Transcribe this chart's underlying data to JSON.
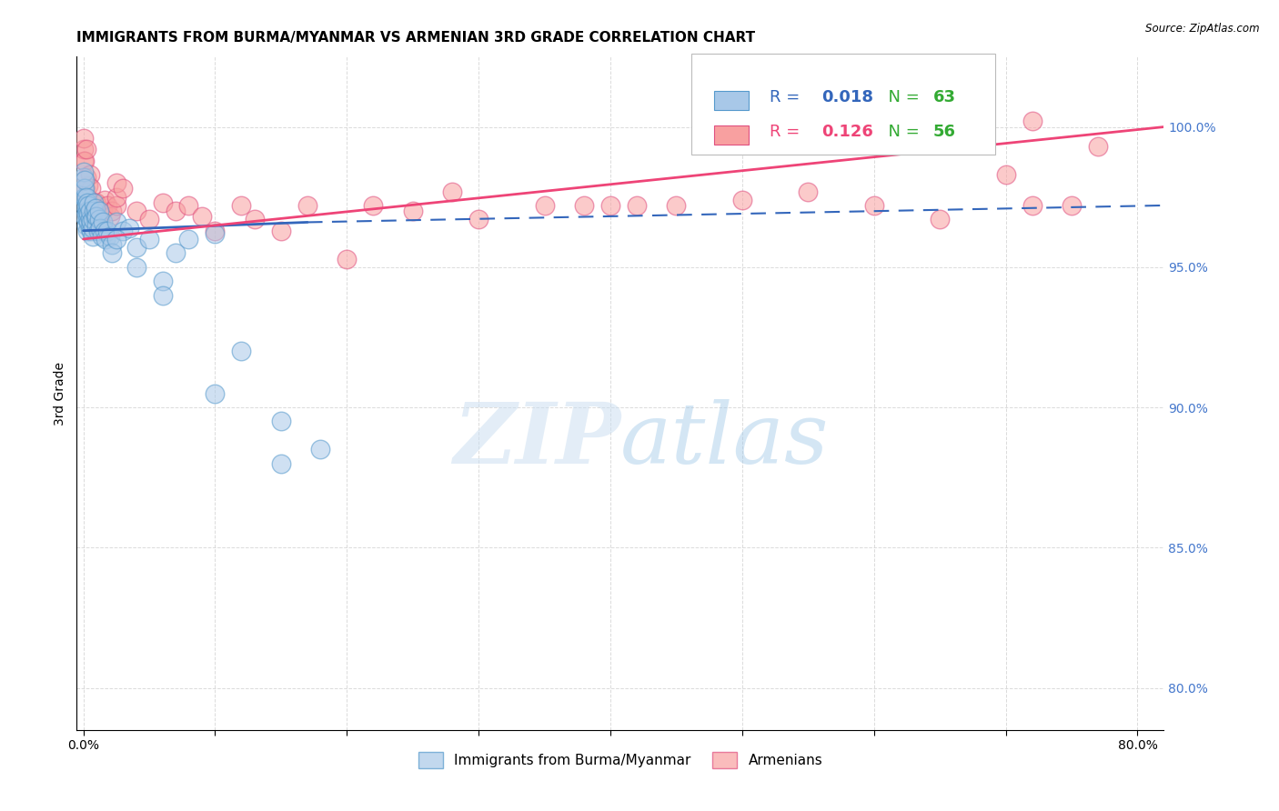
{
  "title": "IMMIGRANTS FROM BURMA/MYANMAR VS ARMENIAN 3RD GRADE CORRELATION CHART",
  "source": "Source: ZipAtlas.com",
  "ylabel": "3rd Grade",
  "yticks": [
    0.8,
    0.85,
    0.9,
    0.95,
    1.0
  ],
  "ytick_labels": [
    "80.0%",
    "85.0%",
    "90.0%",
    "95.0%",
    "100.0%"
  ],
  "xtick_positions": [
    0.0,
    0.1,
    0.2,
    0.3,
    0.4,
    0.5,
    0.6,
    0.7,
    0.8
  ],
  "xtick_labels": [
    "0.0%",
    "",
    "",
    "",
    "",
    "",
    "",
    "",
    "80.0%"
  ],
  "xlim": [
    -0.005,
    0.82
  ],
  "ylim": [
    0.785,
    1.025
  ],
  "blue_scatter_x": [
    0.0,
    0.0,
    0.0,
    0.0,
    0.001,
    0.001,
    0.001,
    0.001,
    0.001,
    0.002,
    0.002,
    0.002,
    0.002,
    0.003,
    0.003,
    0.003,
    0.003,
    0.004,
    0.004,
    0.004,
    0.005,
    0.005,
    0.005,
    0.006,
    0.006,
    0.007,
    0.007,
    0.007,
    0.008,
    0.008,
    0.009,
    0.009,
    0.01,
    0.01,
    0.011,
    0.012,
    0.012,
    0.013,
    0.014,
    0.015,
    0.016,
    0.017,
    0.018,
    0.02,
    0.022,
    0.025,
    0.03,
    0.035,
    0.04,
    0.05,
    0.06,
    0.07,
    0.08,
    0.1,
    0.12,
    0.15,
    0.18,
    0.022,
    0.025,
    0.04,
    0.06,
    0.1,
    0.15
  ],
  "blue_scatter_y": [
    0.975,
    0.978,
    0.982,
    0.984,
    0.968,
    0.972,
    0.975,
    0.978,
    0.981,
    0.965,
    0.969,
    0.972,
    0.975,
    0.963,
    0.967,
    0.97,
    0.973,
    0.966,
    0.969,
    0.972,
    0.964,
    0.967,
    0.97,
    0.963,
    0.966,
    0.961,
    0.964,
    0.967,
    0.97,
    0.973,
    0.968,
    0.971,
    0.965,
    0.968,
    0.963,
    0.967,
    0.97,
    0.964,
    0.961,
    0.966,
    0.963,
    0.96,
    0.963,
    0.961,
    0.958,
    0.966,
    0.963,
    0.964,
    0.957,
    0.96,
    0.945,
    0.955,
    0.96,
    0.962,
    0.92,
    0.895,
    0.885,
    0.955,
    0.96,
    0.95,
    0.94,
    0.905,
    0.88
  ],
  "pink_scatter_x": [
    0.0,
    0.0,
    0.0,
    0.001,
    0.001,
    0.002,
    0.002,
    0.003,
    0.004,
    0.005,
    0.006,
    0.007,
    0.008,
    0.009,
    0.01,
    0.012,
    0.013,
    0.015,
    0.016,
    0.018,
    0.02,
    0.022,
    0.025,
    0.025,
    0.025,
    0.03,
    0.04,
    0.05,
    0.06,
    0.07,
    0.08,
    0.09,
    0.1,
    0.12,
    0.13,
    0.15,
    0.17,
    0.2,
    0.22,
    0.25,
    0.28,
    0.3,
    0.35,
    0.38,
    0.4,
    0.42,
    0.45,
    0.5,
    0.55,
    0.6,
    0.65,
    0.7,
    0.75,
    0.72,
    0.77,
    0.72
  ],
  "pink_scatter_y": [
    0.988,
    0.992,
    0.996,
    0.978,
    0.988,
    0.982,
    0.992,
    0.975,
    0.979,
    0.983,
    0.978,
    0.973,
    0.968,
    0.973,
    0.973,
    0.968,
    0.966,
    0.97,
    0.974,
    0.972,
    0.968,
    0.97,
    0.972,
    0.975,
    0.98,
    0.978,
    0.97,
    0.967,
    0.973,
    0.97,
    0.972,
    0.968,
    0.963,
    0.972,
    0.967,
    0.963,
    0.972,
    0.953,
    0.972,
    0.97,
    0.977,
    0.967,
    0.972,
    0.972,
    0.972,
    0.972,
    0.972,
    0.974,
    0.977,
    0.972,
    0.967,
    0.983,
    0.972,
    0.972,
    0.993,
    1.002
  ],
  "blue_line_x": [
    0.0,
    0.17
  ],
  "blue_line_y": [
    0.963,
    0.966
  ],
  "blue_dashed_line_x": [
    0.17,
    0.82
  ],
  "blue_dashed_line_y": [
    0.966,
    0.972
  ],
  "pink_line_x": [
    0.0,
    0.82
  ],
  "pink_line_y": [
    0.96,
    1.0
  ],
  "legend_blue_r": "R = 0.018",
  "legend_blue_n": "N = 63",
  "legend_pink_r": "R = 0.126",
  "legend_pink_n": "N = 56",
  "blue_color": "#a8c8e8",
  "blue_edge_color": "#5599cc",
  "pink_color": "#f8a0a0",
  "pink_edge_color": "#e05080",
  "blue_line_color": "#3366bb",
  "pink_line_color": "#ee4477",
  "watermark_zip": "ZIP",
  "watermark_atlas": "atlas",
  "background_color": "#ffffff",
  "grid_color": "#cccccc",
  "title_fontsize": 11,
  "axis_label_fontsize": 10,
  "tick_fontsize": 10,
  "right_tick_color": "#4477cc",
  "legend_r_color": "#3366bb",
  "legend_n_color": "#33aa33"
}
